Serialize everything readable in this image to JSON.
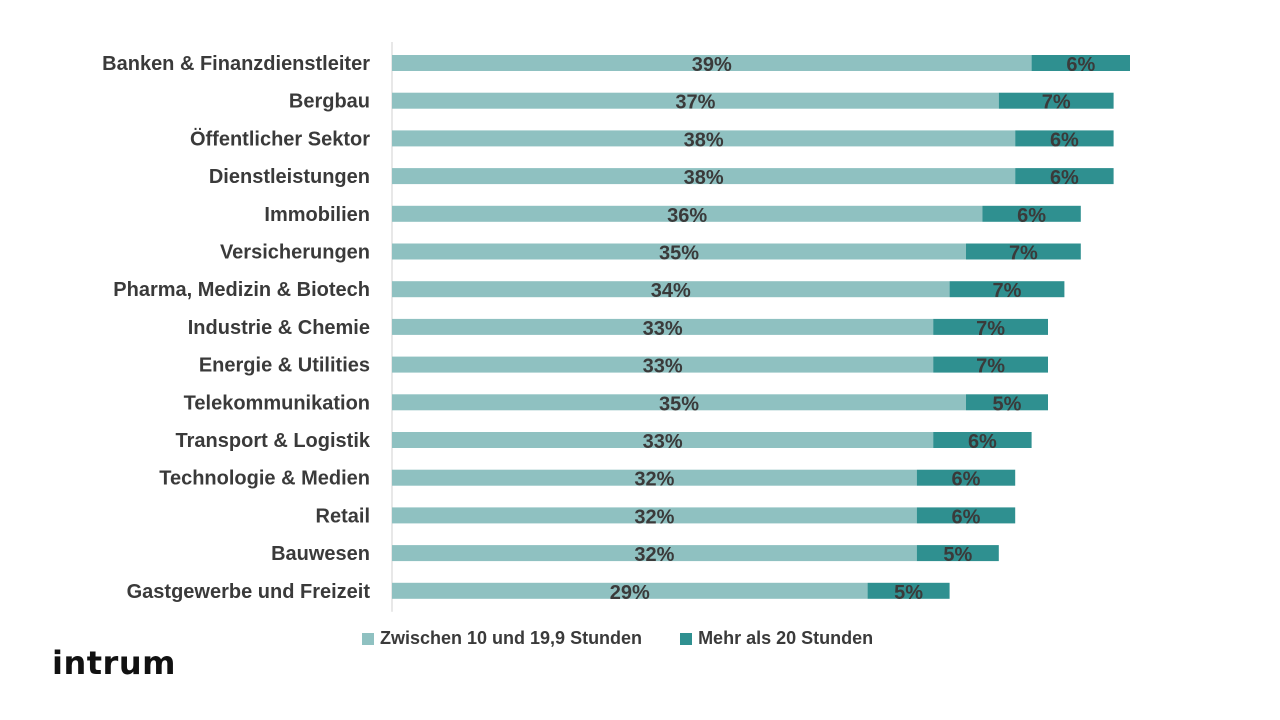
{
  "colors": {
    "light": "#8fc1c1",
    "dark": "#2f9090",
    "axis": "#d0d0d0",
    "label": "#3a3a3a"
  },
  "legend": {
    "item1": "Zwischen 10 und 19,9 Stunden",
    "item2": "Mehr als 20 Stunden"
  },
  "logo": {
    "text": "intrum"
  },
  "chart_data": {
    "type": "bar",
    "orientation": "horizontal",
    "stacked": true,
    "categories": [
      "Banken & Finanzdienstleiter",
      "Bergbau",
      "Öffentlicher Sektor",
      "Dienstleistungen",
      "Immobilien",
      "Versicherungen",
      "Pharma, Medizin & Biotech",
      "Industrie & Chemie",
      "Energie & Utilities",
      "Telekommunikation",
      "Transport & Logistik",
      "Technologie & Medien",
      "Retail",
      "Bauwesen",
      "Gastgewerbe und Freizeit"
    ],
    "series": [
      {
        "name": "Zwischen 10 und 19,9 Stunden",
        "values": [
          39,
          37,
          38,
          38,
          36,
          35,
          34,
          33,
          33,
          35,
          33,
          32,
          32,
          32,
          29
        ]
      },
      {
        "name": "Mehr als 20 Stunden",
        "values": [
          6,
          7,
          6,
          6,
          6,
          7,
          7,
          7,
          7,
          5,
          6,
          6,
          6,
          5,
          5
        ]
      }
    ],
    "value_suffix": "%",
    "xlim": [
      0,
      55
    ],
    "grid": false,
    "legend_position": "bottom"
  }
}
